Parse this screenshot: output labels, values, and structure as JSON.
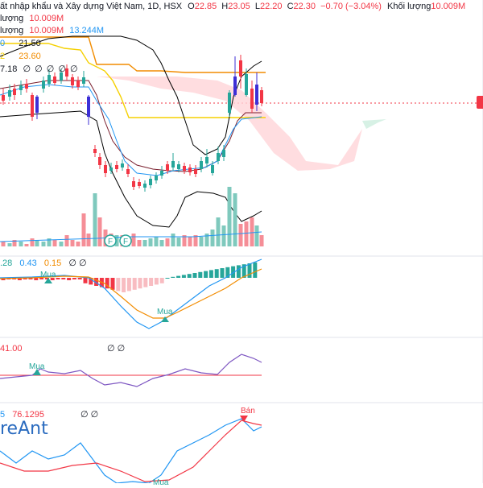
{
  "header": {
    "title": "ất nhập khẩu và Xây dựng Việt Nam, 1D, HSX",
    "o_label": "O",
    "o_value": "22.85",
    "h_label": "H",
    "h_value": "23.05",
    "l_label": "L",
    "l_value": "22.20",
    "c_label": "C",
    "c_value": "22.30",
    "change": "−0.70 (−3.04%)",
    "volume_label": "Khối lượng",
    "volume_value": "10.009M"
  },
  "legend": {
    "row1_prefix": "lượng",
    "row1_value": "10.009M",
    "row2_prefix": "lượng",
    "row2_value": "10.009M",
    "row2_value2": "13.244M",
    "ma1_prefix": "0",
    "ma1_value": "21.50",
    "ma2_prefix": "2",
    "ma2_value": "23.60",
    "ind3_value": "7.18",
    "ind3_extra": "∅ ∅ ∅ ∅ ∅"
  },
  "panes": {
    "macd_values": [
      ".28",
      "0.43",
      "0.15"
    ],
    "macd_extra": "∅ ∅",
    "macd_signal": "Mua",
    "macd_signal2": "Mua",
    "rsi_value": "41.00",
    "rsi_extra": "∅ ∅",
    "rsi_signal": "Mua",
    "stoch_prefix": "5",
    "stoch_value": "76.1295",
    "stoch_extra": "∅ ∅",
    "stoch_signal": "Bán",
    "stoch_signal_bottom": "Mua"
  },
  "watermark": "reAnt",
  "badges": [
    "F",
    "F"
  ],
  "colors": {
    "up": "#26a69a",
    "down": "#f23645",
    "purple": "#3d2fd6",
    "bb": "#000000",
    "orange": "#f28c00",
    "yellow": "#f5d000",
    "blue": "#2196f3",
    "maroon": "#7a1f2e"
  },
  "chart_data": {
    "type": "candlestick",
    "interval": "1D",
    "exchange": "HSX",
    "last_bar": {
      "open": 22.85,
      "high": 23.05,
      "low": 22.2,
      "close": 22.3
    },
    "change": -0.7,
    "change_pct": -3.04,
    "volume": "10.009M",
    "ma_values": [
      21.5,
      23.6
    ]
  }
}
